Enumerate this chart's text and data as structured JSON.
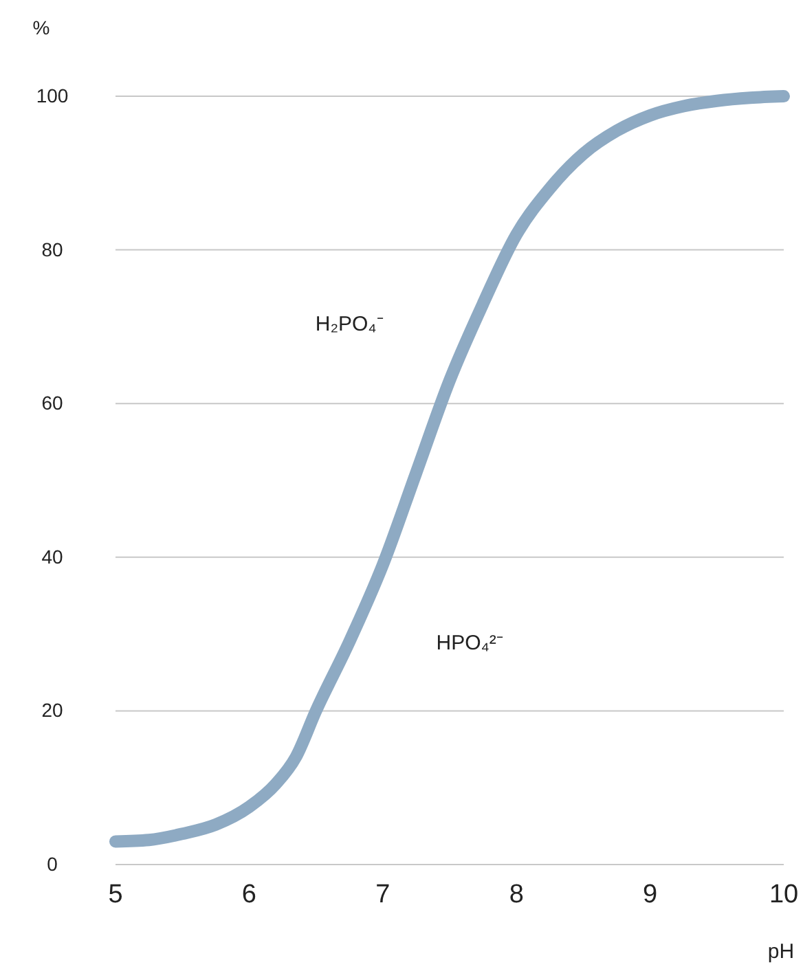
{
  "chart_data": {
    "type": "line",
    "xlabel": "pH",
    "ylabel": "%",
    "series": [
      {
        "color": "#8eaac3",
        "x": [
          5,
          5.25,
          5.5,
          5.75,
          6,
          6.2,
          6.35,
          6.5,
          6.75,
          7,
          7.25,
          7.5,
          7.75,
          8,
          8.25,
          8.5,
          8.75,
          9,
          9.25,
          9.5,
          9.75,
          10
        ],
        "values": [
          3,
          3.2,
          4,
          5.2,
          7.5,
          10.5,
          14,
          20,
          29,
          39,
          51,
          63,
          73,
          82,
          88,
          92.5,
          95.5,
          97.5,
          98.7,
          99.4,
          99.8,
          100
        ]
      }
    ],
    "xlim": [
      5,
      10
    ],
    "xticks": [
      5,
      6,
      7,
      8,
      9,
      10
    ],
    "ylim": [
      0,
      100
    ],
    "yticks": [
      0,
      20,
      40,
      60,
      80,
      100
    ],
    "grid": "y",
    "marker": "none",
    "line_style": "solid",
    "annotations": [
      "H₂PO₄⁻",
      "HPO₄²⁻"
    ]
  }
}
